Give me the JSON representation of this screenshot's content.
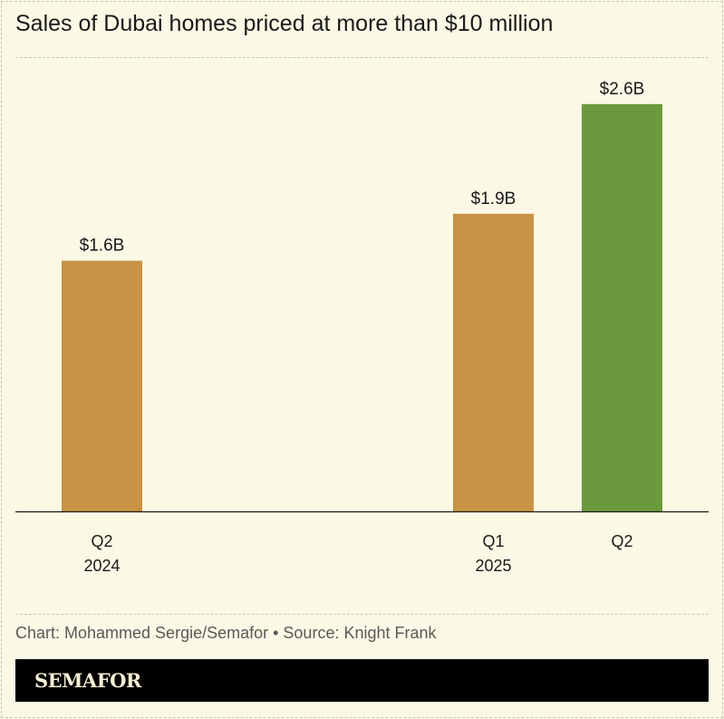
{
  "title": "Sales of Dubai homes priced at more than $10 million",
  "credit": "Chart: Mohammed Sergie/Semafor • Source: Knight Frank",
  "logo": "SEMAFOR",
  "chart_data": {
    "type": "bar",
    "title": "Sales of Dubai homes priced at more than $10 million",
    "categories": [
      [
        "Q2",
        "2024"
      ],
      [
        "",
        ""
      ],
      [
        "",
        ""
      ],
      [
        "Q1",
        "2025"
      ],
      [
        "Q2",
        ""
      ]
    ],
    "bars": [
      {
        "quarter": "Q2",
        "year": "2024",
        "value": 1.6,
        "label": "$1.6B",
        "color": "#c89344"
      },
      {
        "quarter": "Q1",
        "year": "2025",
        "value": 1.9,
        "label": "$1.9B",
        "color": "#c89344"
      },
      {
        "quarter": "Q2",
        "year": "",
        "value": 2.6,
        "label": "$2.6B",
        "color": "#6a9a3d"
      }
    ],
    "unit": "USD billions",
    "ylim": [
      0,
      2.9
    ],
    "grid": false,
    "legend": "none"
  }
}
